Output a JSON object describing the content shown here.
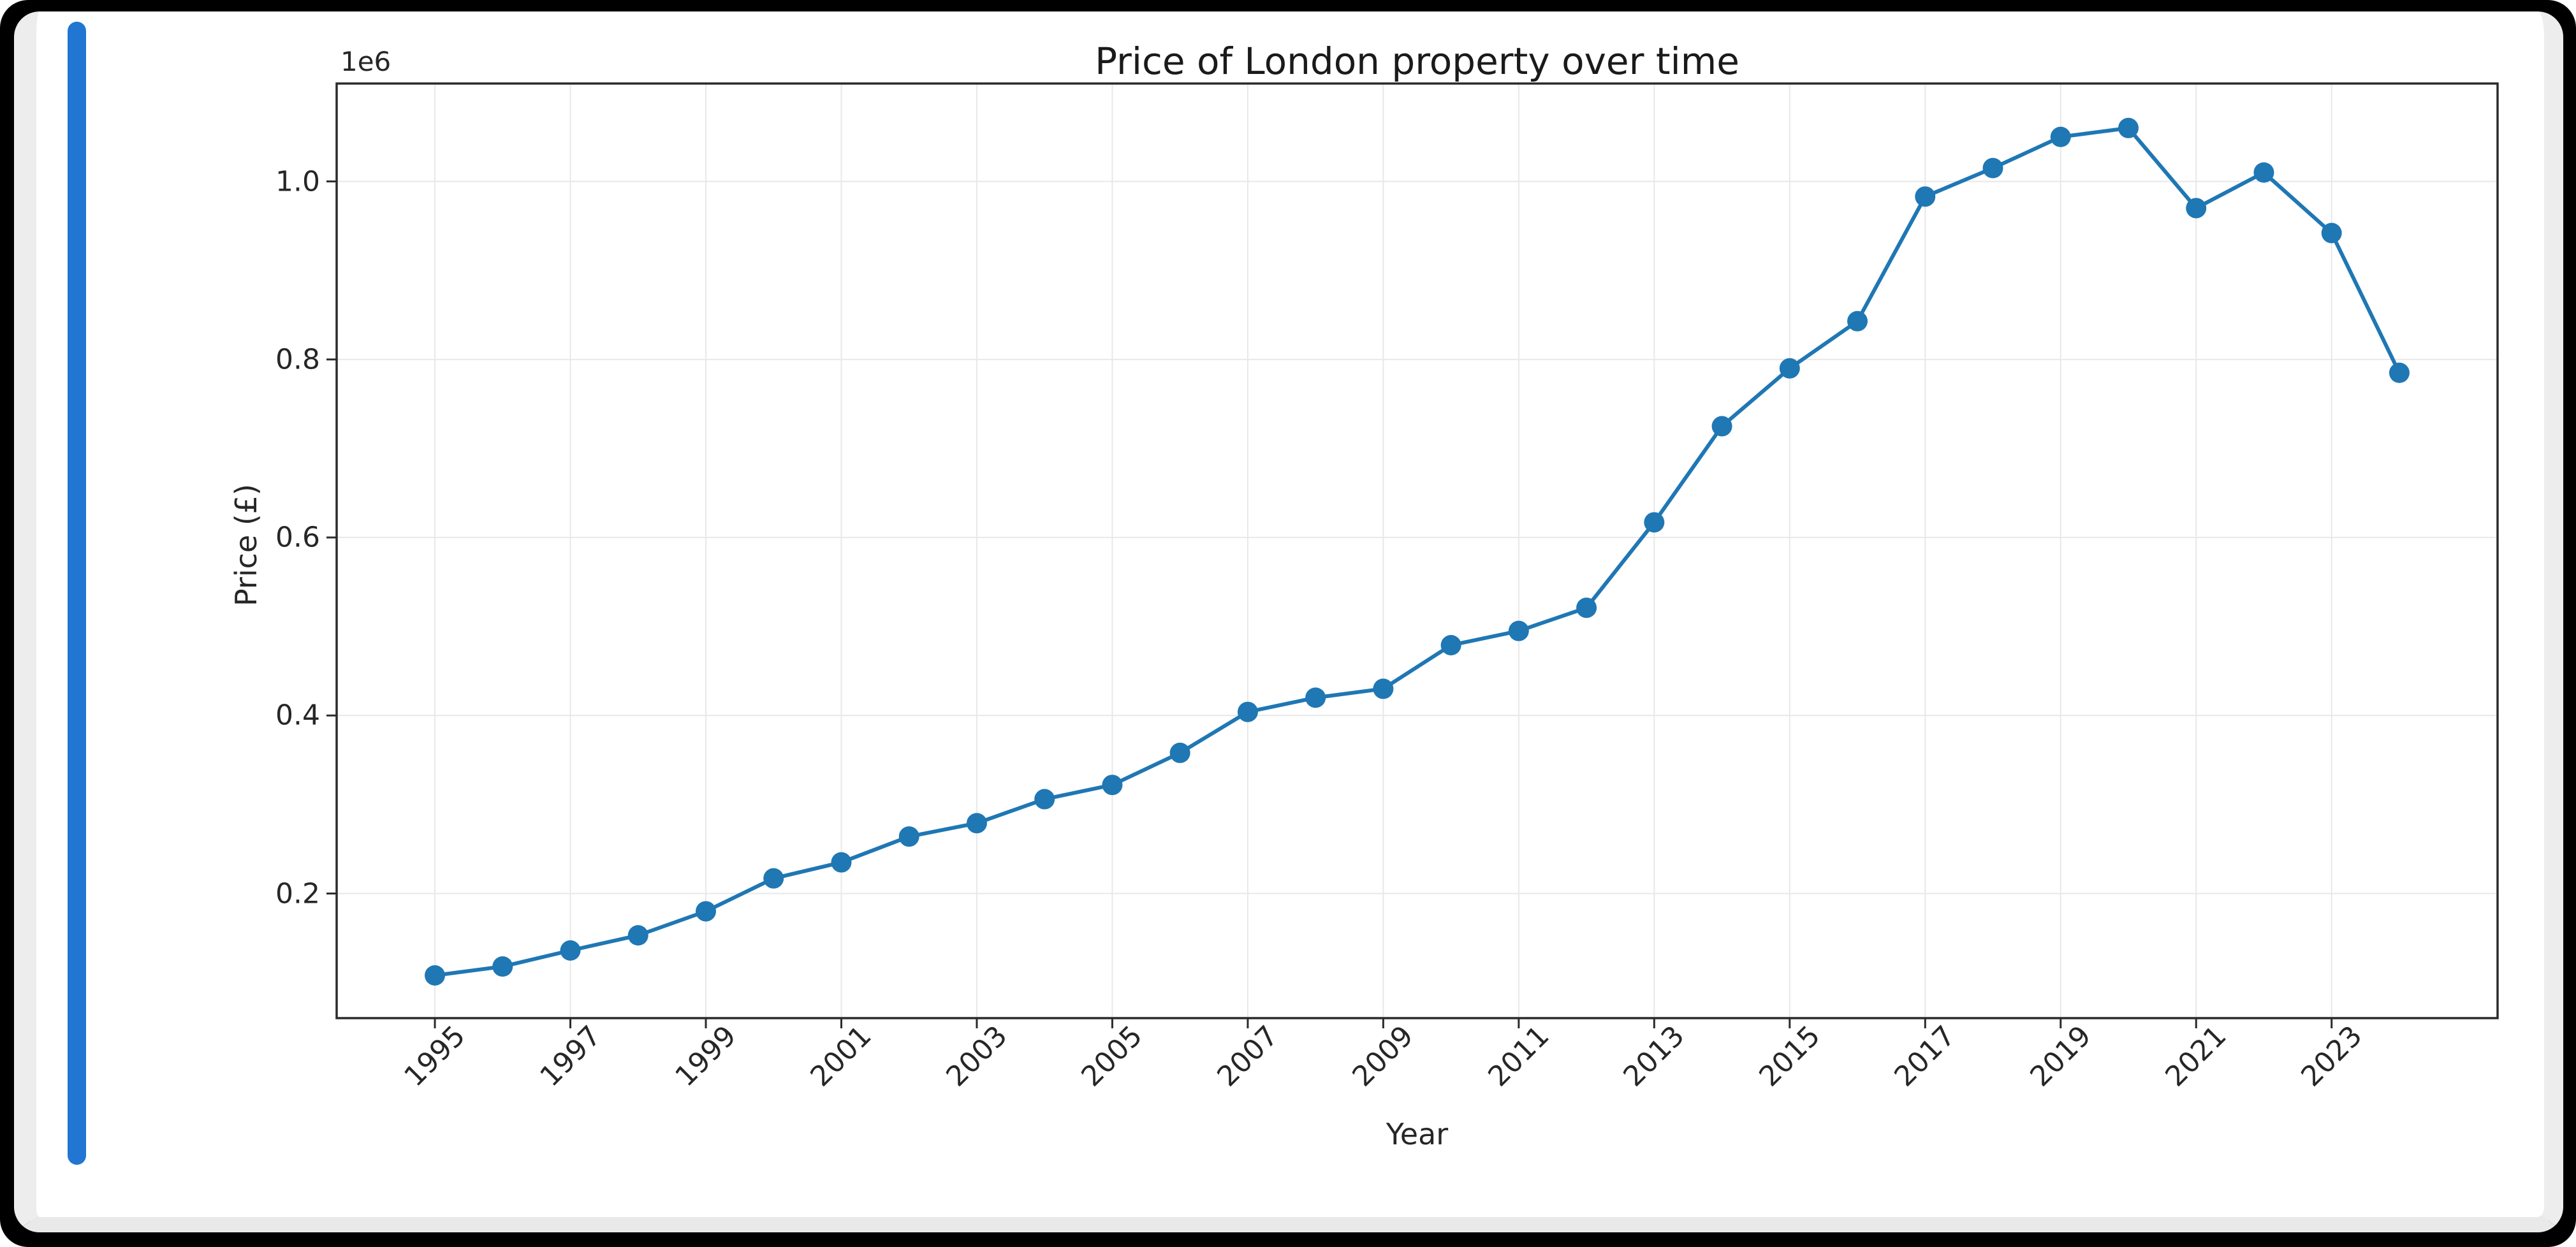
{
  "window": {
    "background": "#ffffff",
    "frame_color": "#000000",
    "scrollbar_color": "#2176d2"
  },
  "chart_data": {
    "type": "line",
    "title": "Price of London property over time",
    "xlabel": "Year",
    "ylabel": "Price (£)",
    "offset_label": "1e6",
    "x": [
      1995,
      1996,
      1997,
      1998,
      1999,
      2000,
      2001,
      2002,
      2003,
      2004,
      2005,
      2006,
      2007,
      2008,
      2009,
      2010,
      2011,
      2012,
      2013,
      2014,
      2015,
      2016,
      2017,
      2018,
      2019,
      2020,
      2021,
      2022,
      2023,
      2024
    ],
    "values": [
      108000,
      118000,
      136000,
      153000,
      180000,
      217000,
      235000,
      264000,
      279000,
      306000,
      322000,
      358000,
      404000,
      420000,
      430000,
      479000,
      495000,
      521000,
      617000,
      725000,
      790000,
      843000,
      983000,
      1015000,
      1050000,
      1060000,
      970000,
      1010000,
      942000,
      785000
    ],
    "x_ticks": [
      1995,
      1997,
      1999,
      2001,
      2003,
      2005,
      2007,
      2009,
      2011,
      2013,
      2015,
      2017,
      2019,
      2021,
      2023
    ],
    "y_ticks": [
      200000,
      400000,
      600000,
      800000,
      1000000
    ],
    "y_tick_labels": [
      "0.2",
      "0.4",
      "0.6",
      "0.8",
      "1.0"
    ],
    "xlim": [
      1993.55,
      2025.45
    ],
    "ylim": [
      60000,
      1110000
    ],
    "line_color": "#1f77b4",
    "marker": "o",
    "grid": true,
    "grid_color": "#e8e8e8",
    "spine_color": "#2b2b2b",
    "legend_position": "none"
  }
}
